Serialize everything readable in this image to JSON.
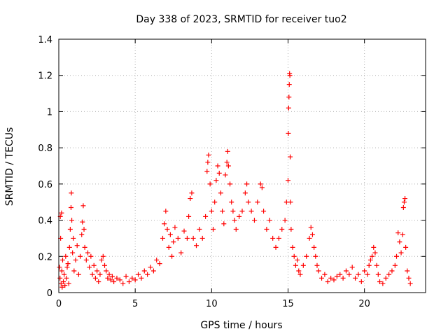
{
  "chart_data": {
    "type": "scatter",
    "title": "Day 338 of 2023, SRMTID for receiver tuo2",
    "xlabel": "GPS time / hours",
    "ylabel": "SRMTID / TECUs",
    "xlim": [
      0,
      24
    ],
    "ylim": [
      0,
      1.4
    ],
    "xticks": [
      0,
      5,
      10,
      15,
      20
    ],
    "xtick_labels": [
      "0",
      "5",
      "10",
      "15",
      "20"
    ],
    "yticks": [
      0,
      0.2,
      0.4,
      0.6,
      0.8,
      1.0,
      1.2,
      1.4
    ],
    "ytick_labels": [
      "0",
      "0.2",
      "0.4",
      "0.6",
      "0.8",
      "1",
      "1.2",
      "1.4"
    ],
    "grid": true,
    "marker": "+",
    "colors": {
      "series": "#ff0000",
      "grid": "#b0b0b0",
      "axis": "#000000"
    },
    "series": [
      {
        "name": "SRMTID",
        "points": [
          [
            0.05,
            0.14
          ],
          [
            0.08,
            0.08
          ],
          [
            0.1,
            0.42
          ],
          [
            0.12,
            0.3
          ],
          [
            0.15,
            0.05
          ],
          [
            0.18,
            0.44
          ],
          [
            0.2,
            0.12
          ],
          [
            0.22,
            0.03
          ],
          [
            0.25,
            0.18
          ],
          [
            0.3,
            0.06
          ],
          [
            0.35,
            0.1
          ],
          [
            0.4,
            0.04
          ],
          [
            0.45,
            0.2
          ],
          [
            0.5,
            0.08
          ],
          [
            0.55,
            0.14
          ],
          [
            0.6,
            0.16
          ],
          [
            0.65,
            0.05
          ],
          [
            0.7,
            0.25
          ],
          [
            0.75,
            0.35
          ],
          [
            0.8,
            0.47
          ],
          [
            0.82,
            0.55
          ],
          [
            0.85,
            0.4
          ],
          [
            0.9,
            0.22
          ],
          [
            0.95,
            0.3
          ],
          [
            1.0,
            0.12
          ],
          [
            1.1,
            0.18
          ],
          [
            1.2,
            0.26
          ],
          [
            1.3,
            0.1
          ],
          [
            1.4,
            0.2
          ],
          [
            1.5,
            0.32
          ],
          [
            1.55,
            0.39
          ],
          [
            1.6,
            0.48
          ],
          [
            1.65,
            0.35
          ],
          [
            1.7,
            0.25
          ],
          [
            1.8,
            0.18
          ],
          [
            1.9,
            0.22
          ],
          [
            2.0,
            0.14
          ],
          [
            2.1,
            0.2
          ],
          [
            2.2,
            0.1
          ],
          [
            2.3,
            0.15
          ],
          [
            2.4,
            0.08
          ],
          [
            2.5,
            0.12
          ],
          [
            2.6,
            0.06
          ],
          [
            2.7,
            0.1
          ],
          [
            2.8,
            0.18
          ],
          [
            2.9,
            0.2
          ],
          [
            3.0,
            0.15
          ],
          [
            3.1,
            0.12
          ],
          [
            3.2,
            0.08
          ],
          [
            3.3,
            0.1
          ],
          [
            3.4,
            0.07
          ],
          [
            3.5,
            0.09
          ],
          [
            3.6,
            0.06
          ],
          [
            3.8,
            0.08
          ],
          [
            4.0,
            0.07
          ],
          [
            4.2,
            0.05
          ],
          [
            4.4,
            0.09
          ],
          [
            4.6,
            0.06
          ],
          [
            4.8,
            0.08
          ],
          [
            5.0,
            0.07
          ],
          [
            5.2,
            0.1
          ],
          [
            5.4,
            0.08
          ],
          [
            5.6,
            0.12
          ],
          [
            5.8,
            0.1
          ],
          [
            6.0,
            0.14
          ],
          [
            6.2,
            0.12
          ],
          [
            6.4,
            0.18
          ],
          [
            6.6,
            0.16
          ],
          [
            6.8,
            0.3
          ],
          [
            6.9,
            0.38
          ],
          [
            7.0,
            0.45
          ],
          [
            7.1,
            0.35
          ],
          [
            7.2,
            0.25
          ],
          [
            7.3,
            0.32
          ],
          [
            7.4,
            0.2
          ],
          [
            7.5,
            0.28
          ],
          [
            7.6,
            0.36
          ],
          [
            7.8,
            0.3
          ],
          [
            8.0,
            0.22
          ],
          [
            8.2,
            0.34
          ],
          [
            8.4,
            0.3
          ],
          [
            8.5,
            0.42
          ],
          [
            8.6,
            0.52
          ],
          [
            8.7,
            0.55
          ],
          [
            8.8,
            0.3
          ],
          [
            9.0,
            0.26
          ],
          [
            9.2,
            0.35
          ],
          [
            9.4,
            0.3
          ],
          [
            9.6,
            0.42
          ],
          [
            9.7,
            0.67
          ],
          [
            9.75,
            0.72
          ],
          [
            9.8,
            0.76
          ],
          [
            9.9,
            0.6
          ],
          [
            10.0,
            0.45
          ],
          [
            10.1,
            0.35
          ],
          [
            10.2,
            0.5
          ],
          [
            10.3,
            0.62
          ],
          [
            10.4,
            0.7
          ],
          [
            10.5,
            0.66
          ],
          [
            10.6,
            0.55
          ],
          [
            10.7,
            0.45
          ],
          [
            10.8,
            0.38
          ],
          [
            10.9,
            0.65
          ],
          [
            11.0,
            0.72
          ],
          [
            11.05,
            0.78
          ],
          [
            11.1,
            0.7
          ],
          [
            11.2,
            0.6
          ],
          [
            11.3,
            0.5
          ],
          [
            11.4,
            0.45
          ],
          [
            11.5,
            0.4
          ],
          [
            11.6,
            0.35
          ],
          [
            11.8,
            0.42
          ],
          [
            12.0,
            0.45
          ],
          [
            12.2,
            0.55
          ],
          [
            12.3,
            0.6
          ],
          [
            12.4,
            0.5
          ],
          [
            12.6,
            0.45
          ],
          [
            12.8,
            0.4
          ],
          [
            13.0,
            0.5
          ],
          [
            13.2,
            0.6
          ],
          [
            13.3,
            0.58
          ],
          [
            13.4,
            0.45
          ],
          [
            13.6,
            0.35
          ],
          [
            13.8,
            0.4
          ],
          [
            14.0,
            0.3
          ],
          [
            14.2,
            0.25
          ],
          [
            14.4,
            0.3
          ],
          [
            14.6,
            0.35
          ],
          [
            14.8,
            0.4
          ],
          [
            14.9,
            0.5
          ],
          [
            15.0,
            0.62
          ],
          [
            15.02,
            0.88
          ],
          [
            15.04,
            1.02
          ],
          [
            15.06,
            1.08
          ],
          [
            15.08,
            1.15
          ],
          [
            15.1,
            1.21
          ],
          [
            15.12,
            1.2
          ],
          [
            15.14,
            0.75
          ],
          [
            15.16,
            0.5
          ],
          [
            15.2,
            0.35
          ],
          [
            15.3,
            0.25
          ],
          [
            15.4,
            0.2
          ],
          [
            15.5,
            0.15
          ],
          [
            15.6,
            0.18
          ],
          [
            15.7,
            0.12
          ],
          [
            15.8,
            0.1
          ],
          [
            16.0,
            0.15
          ],
          [
            16.2,
            0.2
          ],
          [
            16.4,
            0.3
          ],
          [
            16.5,
            0.36
          ],
          [
            16.6,
            0.32
          ],
          [
            16.7,
            0.25
          ],
          [
            16.8,
            0.2
          ],
          [
            16.9,
            0.15
          ],
          [
            17.0,
            0.12
          ],
          [
            17.2,
            0.08
          ],
          [
            17.4,
            0.1
          ],
          [
            17.6,
            0.06
          ],
          [
            17.8,
            0.08
          ],
          [
            18.0,
            0.07
          ],
          [
            18.2,
            0.09
          ],
          [
            18.4,
            0.1
          ],
          [
            18.6,
            0.08
          ],
          [
            18.8,
            0.12
          ],
          [
            19.0,
            0.1
          ],
          [
            19.2,
            0.14
          ],
          [
            19.4,
            0.08
          ],
          [
            19.6,
            0.1
          ],
          [
            19.8,
            0.06
          ],
          [
            20.0,
            0.12
          ],
          [
            20.2,
            0.1
          ],
          [
            20.3,
            0.15
          ],
          [
            20.4,
            0.18
          ],
          [
            20.5,
            0.2
          ],
          [
            20.6,
            0.25
          ],
          [
            20.7,
            0.22
          ],
          [
            20.8,
            0.15
          ],
          [
            20.9,
            0.1
          ],
          [
            21.0,
            0.06
          ],
          [
            21.2,
            0.05
          ],
          [
            21.4,
            0.08
          ],
          [
            21.6,
            0.1
          ],
          [
            21.8,
            0.12
          ],
          [
            22.0,
            0.15
          ],
          [
            22.1,
            0.2
          ],
          [
            22.2,
            0.33
          ],
          [
            22.3,
            0.28
          ],
          [
            22.4,
            0.22
          ],
          [
            22.5,
            0.32
          ],
          [
            22.55,
            0.47
          ],
          [
            22.6,
            0.5
          ],
          [
            22.65,
            0.52
          ],
          [
            22.7,
            0.25
          ],
          [
            22.8,
            0.12
          ],
          [
            22.9,
            0.08
          ],
          [
            23.0,
            0.05
          ]
        ]
      }
    ]
  }
}
